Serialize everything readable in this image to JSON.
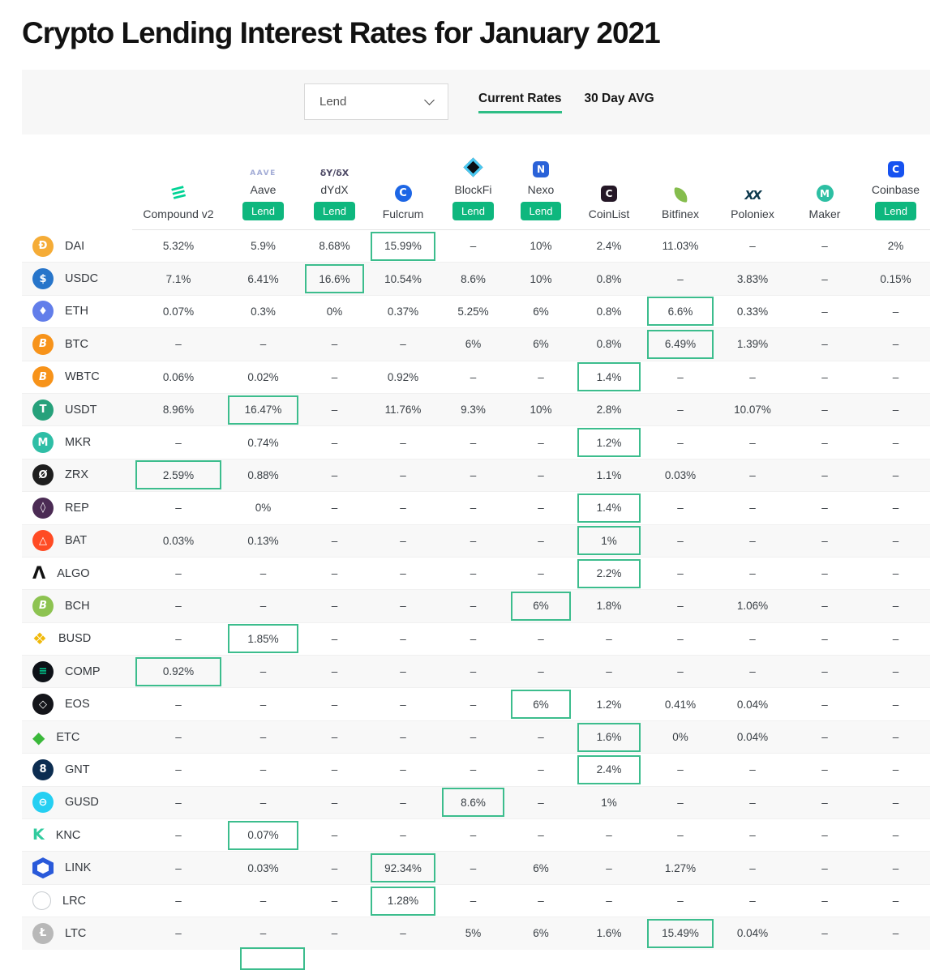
{
  "page_title": "Crypto Lending Interest Rates for January 2021",
  "toolbar": {
    "dropdown_value": "Lend",
    "tabs": [
      {
        "label": "Current Rates",
        "active": true
      },
      {
        "label": "30 Day AVG",
        "active": false
      }
    ]
  },
  "lend_label": "Lend",
  "colors": {
    "accent_green": "#0EB77E",
    "highlight_border": "#3CBD8D",
    "tab_underline": "#2EBD85",
    "row_stripe": "#f8f8f8"
  },
  "table": {
    "platforms": [
      {
        "name": "Compound v2",
        "lend": false,
        "icon": {
          "name": "compound-icon",
          "shape": "text",
          "text": "≡",
          "color": "#00D395",
          "size": 24,
          "rotate": -14
        }
      },
      {
        "name": "Aave",
        "lend": true,
        "icon": {
          "name": "aave-icon",
          "shape": "text",
          "text": "AAVE",
          "color": "#A3ACD6",
          "size": 9,
          "ls": 1.5
        }
      },
      {
        "name": "dYdX",
        "lend": true,
        "icon": {
          "name": "dydx-icon",
          "shape": "text",
          "text": "δY/δX",
          "color": "#4E4A66",
          "size": 11
        }
      },
      {
        "name": "Fulcrum",
        "lend": false,
        "icon": {
          "name": "fulcrum-icon",
          "shape": "circle",
          "text": "C",
          "bg": "#1D66E5",
          "color": "#fff",
          "dim": 21,
          "size": 13
        }
      },
      {
        "name": "BlockFi",
        "lend": true,
        "icon": {
          "name": "blockfi-icon",
          "shape": "diamond",
          "bg": "#0B0F14"
        }
      },
      {
        "name": "Nexo",
        "lend": true,
        "icon": {
          "name": "nexo-icon",
          "shape": "square",
          "text": "N",
          "bg": "#2A62D8",
          "dim": 20,
          "size": 12
        }
      },
      {
        "name": "CoinList",
        "lend": false,
        "icon": {
          "name": "coinlist-icon",
          "shape": "square",
          "text": "C",
          "bg": "#241726",
          "dim": 20,
          "size": 12
        }
      },
      {
        "name": "Bitfinex",
        "lend": false,
        "icon": {
          "name": "bitfinex-icon",
          "shape": "leaf",
          "bg": "#85BD4D"
        }
      },
      {
        "name": "Poloniex",
        "lend": false,
        "icon": {
          "name": "poloniex-icon",
          "shape": "text",
          "text": "XX",
          "color": "#0E3A4E",
          "size": 15,
          "ls": -2,
          "italic": true
        }
      },
      {
        "name": "Maker",
        "lend": false,
        "icon": {
          "name": "maker-icon",
          "shape": "circle",
          "text": "M",
          "bg": "#2DBFA3",
          "dim": 21,
          "size": 12
        }
      },
      {
        "name": "Coinbase",
        "lend": true,
        "icon": {
          "name": "coinbase-icon",
          "shape": "square",
          "text": "C",
          "bg": "#1652F0",
          "dim": 20,
          "size": 12
        }
      }
    ],
    "coins": [
      {
        "symbol": "DAI",
        "icon": {
          "name": "dai-icon",
          "shape": "circle",
          "text": "Ð",
          "bg": "#F5AC37"
        },
        "rates": [
          "5.32%",
          "5.9%",
          "8.68%",
          "15.99%",
          "–",
          "10%",
          "2.4%",
          "11.03%",
          "–",
          "–",
          "2%"
        ],
        "highlight_col": 3
      },
      {
        "symbol": "USDC",
        "icon": {
          "name": "usdc-icon",
          "shape": "circle",
          "text": "$",
          "bg": "#2775CA"
        },
        "rates": [
          "7.1%",
          "6.41%",
          "16.6%",
          "10.54%",
          "8.6%",
          "10%",
          "0.8%",
          "–",
          "3.83%",
          "–",
          "0.15%"
        ],
        "highlight_col": 2
      },
      {
        "symbol": "ETH",
        "icon": {
          "name": "eth-icon",
          "shape": "circle",
          "text": "♦",
          "bg": "#627EEA"
        },
        "rates": [
          "0.07%",
          "0.3%",
          "0%",
          "0.37%",
          "5.25%",
          "6%",
          "0.8%",
          "6.6%",
          "0.33%",
          "–",
          "–"
        ],
        "highlight_col": 7
      },
      {
        "symbol": "BTC",
        "icon": {
          "name": "btc-icon",
          "shape": "circle",
          "text": "B",
          "bg": "#F7931A",
          "italic": true
        },
        "rates": [
          "–",
          "–",
          "–",
          "–",
          "6%",
          "6%",
          "0.8%",
          "6.49%",
          "1.39%",
          "–",
          "–"
        ],
        "highlight_col": 7
      },
      {
        "symbol": "WBTC",
        "icon": {
          "name": "wbtc-icon",
          "shape": "circle",
          "text": "B",
          "bg": "#F7931A",
          "italic": true
        },
        "rates": [
          "0.06%",
          "0.02%",
          "–",
          "0.92%",
          "–",
          "–",
          "1.4%",
          "–",
          "–",
          "–",
          "–"
        ],
        "highlight_col": 6
      },
      {
        "symbol": "USDT",
        "icon": {
          "name": "usdt-icon",
          "shape": "circle",
          "text": "T",
          "bg": "#26A17B"
        },
        "rates": [
          "8.96%",
          "16.47%",
          "–",
          "11.76%",
          "9.3%",
          "10%",
          "2.8%",
          "–",
          "10.07%",
          "–",
          "–"
        ],
        "highlight_col": 1
      },
      {
        "symbol": "MKR",
        "icon": {
          "name": "mkr-icon",
          "shape": "circle",
          "text": "M",
          "bg": "#2FBEA6"
        },
        "rates": [
          "–",
          "0.74%",
          "–",
          "–",
          "–",
          "–",
          "1.2%",
          "–",
          "–",
          "–",
          "–"
        ],
        "highlight_col": 6
      },
      {
        "symbol": "ZRX",
        "icon": {
          "name": "zrx-icon",
          "shape": "circle",
          "text": "Ø",
          "bg": "#1E1E1E"
        },
        "rates": [
          "2.59%",
          "0.88%",
          "–",
          "–",
          "–",
          "–",
          "1.1%",
          "0.03%",
          "–",
          "–",
          "–"
        ],
        "highlight_col": 0
      },
      {
        "symbol": "REP",
        "icon": {
          "name": "rep-icon",
          "shape": "circle",
          "text": "◊",
          "bg": "#4B2B54"
        },
        "rates": [
          "–",
          "0%",
          "–",
          "–",
          "–",
          "–",
          "1.4%",
          "–",
          "–",
          "–",
          "–"
        ],
        "highlight_col": 6
      },
      {
        "symbol": "BAT",
        "icon": {
          "name": "bat-icon",
          "shape": "circle",
          "text": "△",
          "bg": "#FF4B24"
        },
        "rates": [
          "0.03%",
          "0.13%",
          "–",
          "–",
          "–",
          "–",
          "1%",
          "–",
          "–",
          "–",
          "–"
        ],
        "highlight_col": 6
      },
      {
        "symbol": "ALGO",
        "icon": {
          "name": "algo-icon",
          "shape": "text",
          "text": "Λ",
          "color": "#111111",
          "size": 21
        },
        "rates": [
          "–",
          "–",
          "–",
          "–",
          "–",
          "–",
          "2.2%",
          "–",
          "–",
          "–",
          "–"
        ],
        "highlight_col": 6
      },
      {
        "symbol": "BCH",
        "icon": {
          "name": "bch-icon",
          "shape": "circle",
          "text": "B",
          "bg": "#8DC351",
          "italic": true
        },
        "rates": [
          "–",
          "–",
          "–",
          "–",
          "–",
          "6%",
          "1.8%",
          "–",
          "1.06%",
          "–",
          "–"
        ],
        "highlight_col": 5
      },
      {
        "symbol": "BUSD",
        "icon": {
          "name": "busd-icon",
          "shape": "text",
          "text": "❖",
          "color": "#F0B90B",
          "size": 20
        },
        "rates": [
          "–",
          "1.85%",
          "–",
          "–",
          "–",
          "–",
          "–",
          "–",
          "–",
          "–",
          "–"
        ],
        "highlight_col": 1
      },
      {
        "symbol": "COMP",
        "icon": {
          "name": "comp-icon",
          "shape": "circle",
          "text": "≡",
          "bg": "#0D1117",
          "color": "#00D395"
        },
        "rates": [
          "0.92%",
          "–",
          "–",
          "–",
          "–",
          "–",
          "–",
          "–",
          "–",
          "–",
          "–"
        ],
        "highlight_col": 0
      },
      {
        "symbol": "EOS",
        "icon": {
          "name": "eos-icon",
          "shape": "circle",
          "text": "◇",
          "bg": "#14151A"
        },
        "rates": [
          "–",
          "–",
          "–",
          "–",
          "–",
          "6%",
          "1.2%",
          "0.41%",
          "0.04%",
          "–",
          "–"
        ],
        "highlight_col": 5
      },
      {
        "symbol": "ETC",
        "icon": {
          "name": "etc-icon",
          "shape": "text",
          "text": "◆",
          "color": "#3AB83A",
          "size": 20
        },
        "rates": [
          "–",
          "–",
          "–",
          "–",
          "–",
          "–",
          "1.6%",
          "0%",
          "0.04%",
          "–",
          "–"
        ],
        "highlight_col": 6
      },
      {
        "symbol": "GNT",
        "icon": {
          "name": "gnt-icon",
          "shape": "circle",
          "text": "8",
          "bg": "#0C2D51"
        },
        "rates": [
          "–",
          "–",
          "–",
          "–",
          "–",
          "–",
          "2.4%",
          "–",
          "–",
          "–",
          "–"
        ],
        "highlight_col": 6
      },
      {
        "symbol": "GUSD",
        "icon": {
          "name": "gusd-icon",
          "shape": "circle",
          "text": "⊖",
          "bg": "#25CFF2"
        },
        "rates": [
          "–",
          "–",
          "–",
          "–",
          "8.6%",
          "–",
          "1%",
          "–",
          "–",
          "–",
          "–"
        ],
        "highlight_col": 4
      },
      {
        "symbol": "KNC",
        "icon": {
          "name": "knc-icon",
          "shape": "text",
          "text": "K",
          "color": "#31CB9E",
          "size": 19
        },
        "rates": [
          "–",
          "0.07%",
          "–",
          "–",
          "–",
          "–",
          "–",
          "–",
          "–",
          "–",
          "–"
        ],
        "highlight_col": 1
      },
      {
        "symbol": "LINK",
        "icon": {
          "name": "link-icon",
          "shape": "hex",
          "bg": "#2A5ADA"
        },
        "rates": [
          "–",
          "0.03%",
          "–",
          "92.34%",
          "–",
          "6%",
          "–",
          "1.27%",
          "–",
          "–",
          "–"
        ],
        "highlight_col": 3
      },
      {
        "symbol": "LRC",
        "icon": {
          "name": "lrc-icon",
          "shape": "ring"
        },
        "rates": [
          "–",
          "–",
          "–",
          "1.28%",
          "–",
          "–",
          "–",
          "–",
          "–",
          "–",
          "–"
        ],
        "highlight_col": 3
      },
      {
        "symbol": "LTC",
        "icon": {
          "name": "ltc-icon",
          "shape": "circle",
          "text": "Ł",
          "bg": "#B8B8B8"
        },
        "rates": [
          "–",
          "–",
          "–",
          "–",
          "5%",
          "6%",
          "1.6%",
          "15.49%",
          "0.04%",
          "–",
          "–"
        ],
        "highlight_col": 7
      }
    ]
  }
}
